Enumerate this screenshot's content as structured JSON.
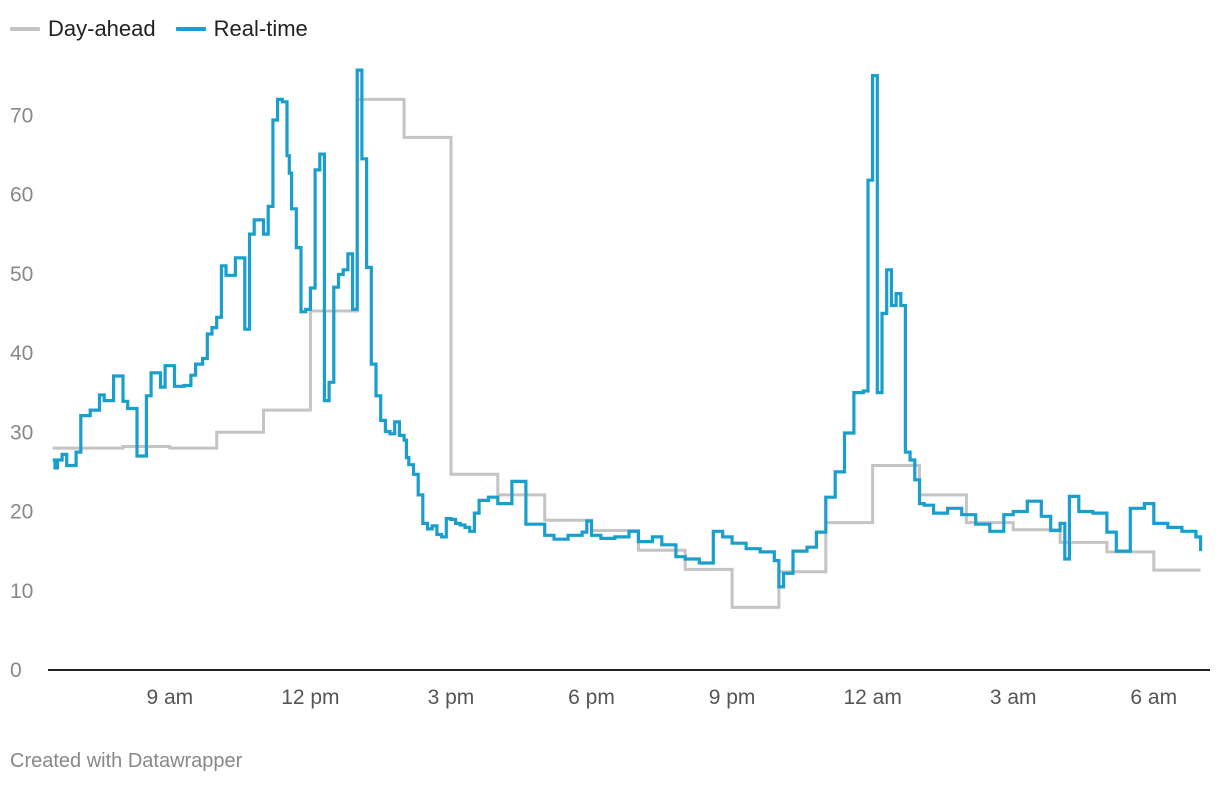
{
  "chart_data": {
    "type": "line",
    "title": "",
    "xlabel": "",
    "ylabel": "",
    "ylim": [
      0,
      80
    ],
    "yticks": [
      0,
      10,
      20,
      30,
      40,
      50,
      60,
      70
    ],
    "xlim": [
      6.4,
      31.2
    ],
    "xticks": [
      {
        "value": 9,
        "label": "9 am"
      },
      {
        "value": 12,
        "label": "12 pm"
      },
      {
        "value": 15,
        "label": "3 pm"
      },
      {
        "value": 18,
        "label": "6 pm"
      },
      {
        "value": 21,
        "label": "9 pm"
      },
      {
        "value": 24,
        "label": "12 am"
      },
      {
        "value": 27,
        "label": "3 am"
      },
      {
        "value": 30,
        "label": "6 am"
      }
    ],
    "grid": false,
    "legend_position": "top-left",
    "series": [
      {
        "name": "Day-ahead",
        "color": "#c4c4c4",
        "step": true,
        "x": [
          6.5,
          7.5,
          8.0,
          9.0,
          10.0,
          11.0,
          12.0,
          13.0,
          14.0,
          15.0,
          16.0,
          17.0,
          18.0,
          19.0,
          20.0,
          21.0,
          22.0,
          23.0,
          24.0,
          25.0,
          26.0,
          27.0,
          28.0,
          29.0,
          30.0,
          31.0
        ],
        "values": [
          28,
          28,
          28.2,
          28,
          30,
          32.8,
          45.3,
          72,
          67.2,
          24.7,
          22.1,
          18.9,
          17.6,
          15.1,
          12.7,
          7.9,
          12.4,
          18.6,
          25.8,
          22.1,
          18.6,
          17.7,
          16.1,
          14.9,
          12.6,
          12.6
        ]
      },
      {
        "name": "Real-time",
        "color": "#1a9fcc",
        "step": true,
        "x": [
          6.5,
          6.55,
          6.6,
          6.7,
          6.8,
          7.0,
          7.1,
          7.3,
          7.5,
          7.6,
          7.8,
          8.0,
          8.1,
          8.3,
          8.5,
          8.6,
          8.8,
          8.9,
          9.1,
          9.2,
          9.3,
          9.45,
          9.55,
          9.7,
          9.8,
          9.9,
          10.0,
          10.1,
          10.2,
          10.4,
          10.6,
          10.7,
          10.8,
          11.0,
          11.1,
          11.2,
          11.3,
          11.4,
          11.5,
          11.55,
          11.6,
          11.7,
          11.8,
          11.9,
          12.0,
          12.1,
          12.2,
          12.3,
          12.4,
          12.5,
          12.6,
          12.7,
          12.8,
          12.9,
          13.0,
          13.1,
          13.2,
          13.3,
          13.4,
          13.5,
          13.6,
          13.7,
          13.8,
          13.9,
          14.0,
          14.05,
          14.1,
          14.2,
          14.3,
          14.4,
          14.5,
          14.6,
          14.7,
          14.8,
          14.9,
          15.0,
          15.1,
          15.2,
          15.3,
          15.4,
          15.5,
          15.6,
          15.8,
          16.0,
          16.3,
          16.6,
          17.0,
          17.2,
          17.5,
          17.8,
          17.9,
          18.0,
          18.2,
          18.5,
          18.8,
          19.0,
          19.3,
          19.5,
          19.8,
          20.0,
          20.3,
          20.6,
          20.8,
          21.0,
          21.3,
          21.6,
          21.9,
          22.0,
          22.1,
          22.3,
          22.6,
          22.8,
          23.0,
          23.2,
          23.4,
          23.6,
          23.8,
          23.9,
          24.0,
          24.1,
          24.2,
          24.3,
          24.4,
          24.5,
          24.6,
          24.7,
          24.8,
          24.9,
          25.0,
          25.1,
          25.3,
          25.6,
          25.9,
          26.2,
          26.5,
          26.8,
          27.0,
          27.3,
          27.6,
          27.8,
          28.0,
          28.1,
          28.2,
          28.4,
          28.7,
          29.0,
          29.2,
          29.5,
          29.8,
          30.0,
          30.3,
          30.6,
          30.9,
          31.0
        ],
        "values": [
          26.5,
          25.5,
          26.5,
          27.2,
          25.8,
          27.5,
          32.1,
          32.8,
          34.7,
          34.0,
          37.1,
          33.9,
          33.0,
          27.0,
          34.6,
          37.5,
          35.7,
          38.4,
          35.8,
          35.8,
          35.9,
          37.2,
          38.6,
          39.3,
          42.4,
          43.2,
          44.5,
          51.0,
          49.8,
          52.0,
          43.0,
          55.0,
          56.8,
          55.0,
          58.5,
          69.4,
          72.0,
          71.7,
          64.9,
          62.7,
          58.2,
          53.3,
          45.2,
          45.5,
          48.2,
          63.1,
          65.1,
          34.0,
          36.3,
          48.3,
          49.9,
          50.5,
          52.5,
          45.5,
          75.7,
          64.5,
          50.8,
          38.6,
          34.6,
          31.5,
          30.1,
          29.8,
          31.3,
          29.6,
          29.0,
          26.8,
          25.9,
          24.7,
          22.1,
          18.5,
          17.8,
          18.2,
          17.1,
          16.8,
          19.1,
          19.0,
          18.5,
          18.3,
          18.0,
          17.5,
          19.8,
          21.4,
          21.8,
          21.0,
          23.8,
          18.4,
          17.0,
          16.5,
          17.0,
          17.4,
          18.8,
          17.0,
          16.6,
          16.8,
          17.5,
          16.2,
          16.8,
          15.8,
          14.3,
          14.0,
          13.5,
          17.5,
          16.8,
          16.0,
          15.3,
          14.9,
          13.8,
          10.5,
          12.2,
          15.0,
          15.5,
          17.4,
          21.8,
          25.0,
          29.9,
          35.0,
          35.2,
          61.8,
          75.0,
          35.0,
          45.0,
          50.5,
          46.0,
          47.5,
          46.0,
          27.5,
          26.5,
          24.0,
          21.0,
          20.8,
          19.8,
          20.4,
          19.6,
          18.4,
          17.5,
          19.6,
          20.0,
          21.3,
          19.4,
          17.6,
          18.5,
          14.0,
          21.9,
          20.0,
          19.8,
          17.4,
          15.0,
          20.4,
          21.0,
          18.5,
          18.0,
          17.5,
          16.8,
          15.0
        ]
      }
    ]
  },
  "footer": {
    "credit": "Created with Datawrapper"
  }
}
